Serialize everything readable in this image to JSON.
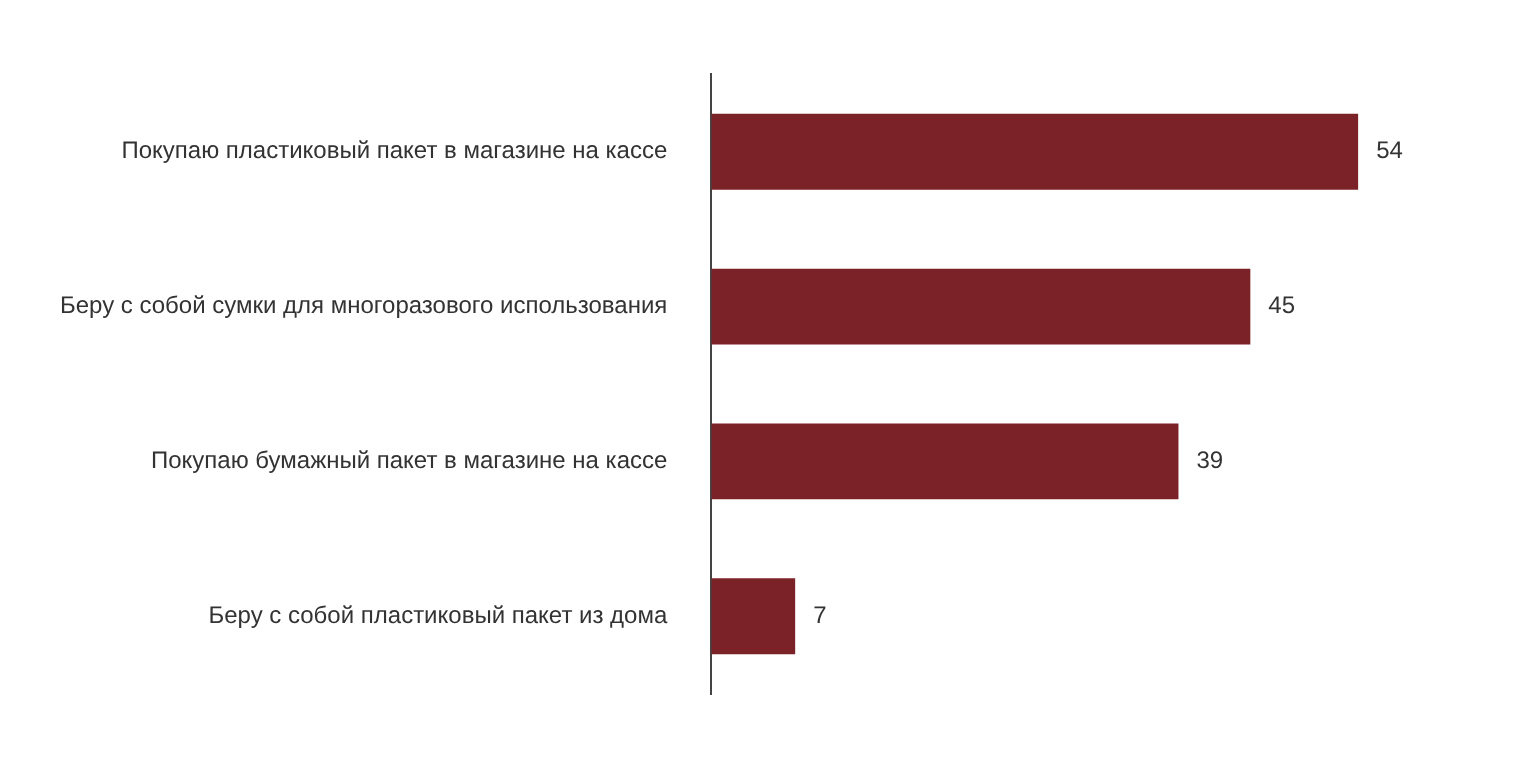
{
  "chart_data": {
    "type": "bar",
    "orientation": "horizontal",
    "categories": [
      "Покупаю пластиковый пакет в магазине на кассе",
      "Беру с собой сумки для многоразового использования",
      "Покупаю бумажный пакет в магазине на кассе",
      "Беру с собой пластиковый пакет из дома"
    ],
    "values": [
      54,
      45,
      39,
      7
    ],
    "color": "#7b2228",
    "data_labels": true,
    "grid": false,
    "legend": false,
    "tick_labels": "y"
  }
}
